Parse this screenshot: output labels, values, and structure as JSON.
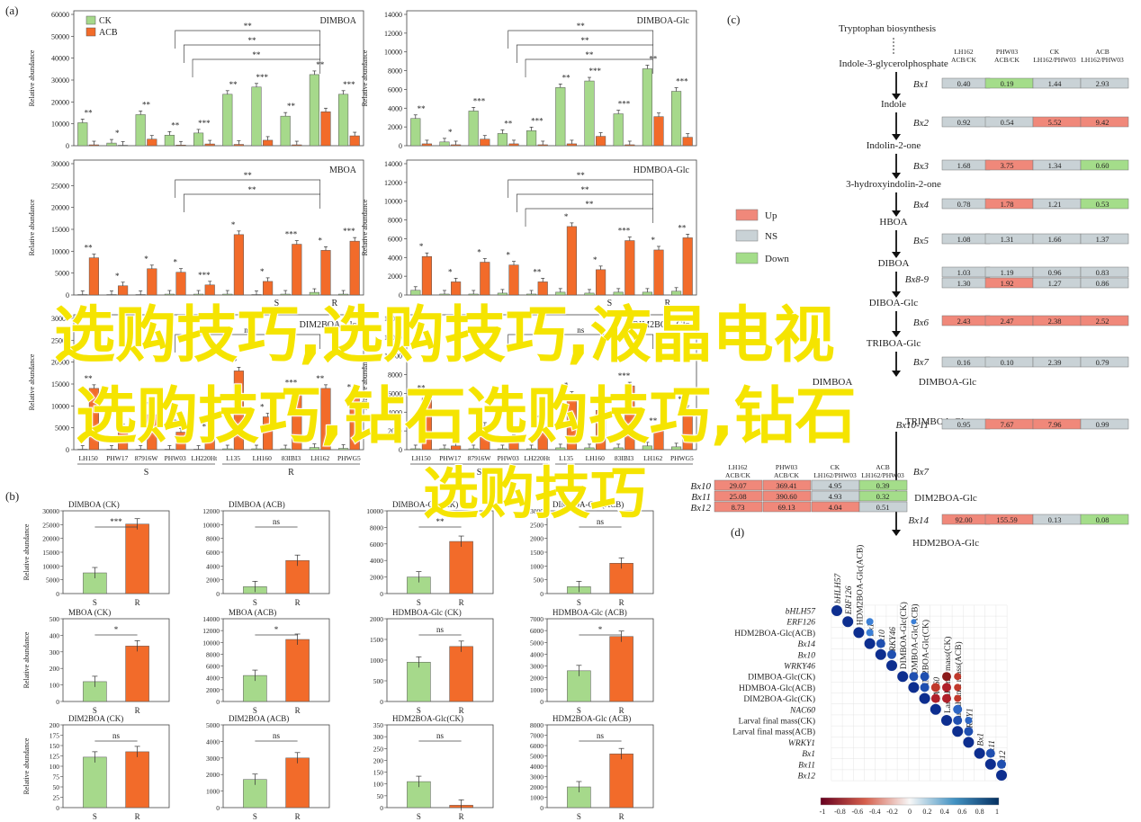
{
  "labels": {
    "a": "(a)",
    "b": "(b)",
    "c": "(c)",
    "d": "(d)"
  },
  "colors": {
    "ck": "#a6d98b",
    "acb": "#f26b2a",
    "up": "#f0887a",
    "ns": "#c9d2d6",
    "down": "#a4dd8a"
  },
  "legend_a": {
    "ck": "CK",
    "acb": "ACB"
  },
  "cultivars_S": [
    "LH150",
    "PHW17",
    "87916W",
    "PHW03",
    "LH220Ht"
  ],
  "cultivars_R": [
    "L135",
    "LH160",
    "83IBI3",
    "LH162",
    "PHWG5"
  ],
  "group_labels": {
    "s": "S",
    "r": "R"
  },
  "ylabel": "Relative abundance",
  "chart_data": [
    {
      "type": "bar",
      "title": "DIMBOA",
      "ylim": [
        0,
        60000
      ],
      "yticks": [
        0,
        10000,
        20000,
        30000,
        40000,
        50000,
        60000
      ],
      "series": [
        {
          "name": "CK",
          "values": [
            10500,
            1200,
            14200,
            4800,
            5800,
            23500,
            26800,
            13500,
            32500,
            23500
          ]
        },
        {
          "name": "ACB",
          "values": [
            400,
            200,
            3000,
            300,
            800,
            600,
            2500,
            400,
            15500,
            4500
          ]
        }
      ],
      "sig": [
        "**",
        "*",
        "**",
        "**",
        "***",
        "**",
        "***",
        "**",
        "**",
        "***"
      ],
      "brackets": [
        "**",
        "**",
        "**"
      ]
    },
    {
      "type": "bar",
      "title": "DIMBOA-Glc",
      "ylim": [
        0,
        14000
      ],
      "yticks": [
        0,
        2000,
        4000,
        6000,
        8000,
        10000,
        12000,
        14000
      ],
      "series": [
        {
          "name": "CK",
          "values": [
            2900,
            400,
            3700,
            1300,
            1600,
            6200,
            6900,
            3400,
            8200,
            5800
          ]
        },
        {
          "name": "ACB",
          "values": [
            200,
            100,
            700,
            200,
            100,
            200,
            1000,
            100,
            3100,
            900
          ]
        }
      ],
      "sig": [
        "**",
        "*",
        "***",
        "**",
        "***",
        "**",
        "***",
        "***",
        "**",
        "***"
      ],
      "brackets": [
        "**",
        "**",
        "**"
      ]
    },
    {
      "type": "bar",
      "title": "MBOA",
      "ylim": [
        0,
        30000
      ],
      "yticks": [
        0,
        5000,
        10000,
        15000,
        20000,
        25000,
        30000
      ],
      "series": [
        {
          "name": "CK",
          "values": [
            100,
            100,
            100,
            200,
            200,
            200,
            100,
            200,
            600,
            200
          ]
        },
        {
          "name": "ACB",
          "values": [
            8500,
            2100,
            6000,
            5200,
            2300,
            13800,
            3100,
            11600,
            10200,
            12300
          ]
        }
      ],
      "sig": [
        "**",
        "*",
        "*",
        "*",
        "***",
        "*",
        "*",
        "***",
        "*",
        "***"
      ],
      "brackets": [
        "**",
        "**"
      ]
    },
    {
      "type": "bar",
      "title": "HDMBOA-Glc",
      "ylim": [
        0,
        14000
      ],
      "yticks": [
        0,
        2000,
        4000,
        6000,
        8000,
        10000,
        12000,
        14000
      ],
      "series": [
        {
          "name": "CK",
          "values": [
            500,
            100,
            100,
            200,
            100,
            300,
            200,
            300,
            300,
            400
          ]
        },
        {
          "name": "ACB",
          "values": [
            4100,
            1400,
            3500,
            3200,
            1400,
            7300,
            2700,
            5800,
            4800,
            6100
          ]
        }
      ],
      "sig": [
        "*",
        "*",
        "*",
        "*",
        "**",
        "*",
        "*",
        "***",
        "*",
        "**"
      ],
      "brackets": [
        "**",
        "**",
        "**"
      ]
    },
    {
      "type": "bar",
      "title": "DIM2BOA-Glc",
      "ylim": [
        0,
        30000
      ],
      "yticks": [
        0,
        5000,
        10000,
        15000,
        20000,
        25000,
        30000
      ],
      "series": [
        {
          "name": "CK",
          "values": [
            100,
            100,
            100,
            100,
            100,
            200,
            200,
            200,
            500,
            300
          ]
        },
        {
          "name": "ACB",
          "values": [
            14000,
            5000,
            8000,
            4000,
            3000,
            18000,
            7500,
            13000,
            14000,
            12000
          ]
        }
      ],
      "sig": [
        "**",
        "*",
        "*",
        "*",
        "*",
        "**",
        "*",
        "***",
        "**",
        "*"
      ],
      "brackets": [
        "ns"
      ]
    },
    {
      "type": "bar",
      "title": "DIM2BOA-Glc",
      "ylim": [
        0,
        14000
      ],
      "yticks": [
        0,
        2000,
        4000,
        6000,
        8000,
        10000,
        12000,
        14000
      ],
      "series": [
        {
          "name": "CK",
          "values": [
            100,
            100,
            100,
            100,
            100,
            200,
            200,
            200,
            400,
            300
          ]
        },
        {
          "name": "ACB",
          "values": [
            5500,
            400,
            2500,
            1200,
            2300,
            5800,
            4200,
            6800,
            2000,
            4300
          ]
        }
      ],
      "sig": [
        "**",
        "***",
        "*",
        "*",
        "*",
        "*",
        "**",
        "***",
        "**",
        "**"
      ],
      "brackets": [
        "ns"
      ]
    },
    {
      "type": "bar",
      "title": "DIMBOA (CK)",
      "ylim": [
        0,
        30000
      ],
      "yticks": [
        0,
        5000,
        10000,
        15000,
        20000,
        25000,
        30000
      ],
      "categories": [
        "S",
        "R"
      ],
      "values": [
        7500,
        25200
      ],
      "sig": "***"
    },
    {
      "type": "bar",
      "title": "DIMBOA (ACB)",
      "ylim": [
        0,
        12000
      ],
      "yticks": [
        0,
        2000,
        4000,
        6000,
        8000,
        10000,
        12000
      ],
      "categories": [
        "S",
        "R"
      ],
      "values": [
        1000,
        4800
      ],
      "sig": "ns"
    },
    {
      "type": "bar",
      "title": "DIMBOA-Glc (CK)",
      "ylim": [
        0,
        10000
      ],
      "yticks": [
        0,
        2000,
        4000,
        6000,
        8000,
        10000
      ],
      "categories": [
        "S",
        "R"
      ],
      "values": [
        2000,
        6300
      ],
      "sig": "**"
    },
    {
      "type": "bar",
      "title": "DIMBOA-Glc (ACB)",
      "ylim": [
        0,
        3000
      ],
      "yticks": [
        0,
        500,
        1000,
        1500,
        2000,
        2500,
        3000
      ],
      "categories": [
        "S",
        "R"
      ],
      "values": [
        250,
        1100
      ],
      "sig": "ns"
    },
    {
      "type": "bar",
      "title": "MBOA (CK)",
      "ylim": [
        0,
        500
      ],
      "yticks": [
        0,
        100,
        200,
        300,
        400,
        500
      ],
      "categories": [
        "S",
        "R"
      ],
      "values": [
        120,
        335
      ],
      "sig": "*"
    },
    {
      "type": "bar",
      "title": "MBOA (ACB)",
      "ylim": [
        0,
        14000
      ],
      "yticks": [
        0,
        2000,
        4000,
        6000,
        8000,
        10000,
        12000,
        14000
      ],
      "categories": [
        "S",
        "R"
      ],
      "values": [
        4400,
        10500
      ],
      "sig": "*"
    },
    {
      "type": "bar",
      "title": "HDMBOA-Glc (CK)",
      "ylim": [
        0,
        2000
      ],
      "yticks": [
        0,
        500,
        1000,
        1500,
        2000
      ],
      "categories": [
        "S",
        "R"
      ],
      "values": [
        950,
        1330
      ],
      "sig": "ns"
    },
    {
      "type": "bar",
      "title": "HDMBOA-Glc (ACB)",
      "ylim": [
        0,
        7000
      ],
      "yticks": [
        0,
        1000,
        2000,
        3000,
        4000,
        5000,
        6000,
        7000
      ],
      "categories": [
        "S",
        "R"
      ],
      "values": [
        2600,
        5500
      ],
      "sig": "*"
    },
    {
      "type": "bar",
      "title": "DIM2BOA (CK)",
      "ylim": [
        0,
        200
      ],
      "yticks": [
        0,
        25,
        50,
        75,
        100,
        125,
        150,
        175,
        200
      ],
      "categories": [
        "S",
        "R"
      ],
      "values": [
        122,
        135
      ],
      "sig": "ns"
    },
    {
      "type": "bar",
      "title": "DIM2BOA (ACB)",
      "ylim": [
        0,
        5000
      ],
      "yticks": [
        0,
        1000,
        2000,
        3000,
        4000,
        5000
      ],
      "categories": [
        "S",
        "R"
      ],
      "values": [
        1700,
        3000
      ],
      "sig": "ns"
    },
    {
      "type": "bar",
      "title": "HDM2BOA-Glc(CK)",
      "ylim": [
        0,
        350
      ],
      "yticks": [
        0,
        50,
        100,
        150,
        200,
        250,
        300,
        350
      ],
      "categories": [
        "S",
        "R"
      ],
      "values": [
        110,
        10
      ],
      "sig": "ns"
    },
    {
      "type": "bar",
      "title": "HDM2BOA-Glc (ACB)",
      "ylim": [
        0,
        8000
      ],
      "yticks": [
        0,
        1000,
        2000,
        3000,
        4000,
        5000,
        6000,
        7000,
        8000
      ],
      "categories": [
        "S",
        "R"
      ],
      "values": [
        2000,
        5200
      ],
      "sig": "ns"
    }
  ],
  "pathway": {
    "start": "Tryptophan biosynthesis",
    "metabolites": [
      "Indole-3-glycerolphosphate",
      "Indole",
      "Indolin-2-one",
      "3-hydroxyindolin-2-one",
      "HBOA",
      "DIBOA",
      "DIBOA-Glc",
      "TRIBOA-Glc",
      "DIMBOA",
      "DIMBOA-Glc",
      "TRIMBOA-Glc",
      "DIM2BOA-Glc",
      "HDM2BOA-Glc"
    ],
    "enzymes": [
      "Bx1",
      "Bx2",
      "Bx3",
      "Bx4",
      "Bx5",
      "Bx8-9",
      "Bx6",
      "Bx7",
      "Bx10-11",
      "Bx7",
      "Bx14"
    ],
    "header": [
      "LH162\nACB/CK",
      "PHW03\nACB/CK",
      "CK\nLH162/PHW03",
      "ACB\nLH162/PHW03"
    ],
    "rows": [
      {
        "gene": "Bx1",
        "values": [
          "0.40",
          "0.19",
          "1.44",
          "2.93"
        ],
        "status": [
          "ns",
          "down",
          "ns",
          "ns"
        ]
      },
      {
        "gene": "Bx2",
        "values": [
          "0.92",
          "0.54",
          "5.52",
          "9.42"
        ],
        "status": [
          "ns",
          "ns",
          "up",
          "up"
        ]
      },
      {
        "gene": "Bx3",
        "values": [
          "1.68",
          "3.75",
          "1.34",
          "0.60"
        ],
        "status": [
          "ns",
          "up",
          "ns",
          "down"
        ]
      },
      {
        "gene": "Bx4",
        "values": [
          "0.78",
          "1.78",
          "1.21",
          "0.53"
        ],
        "status": [
          "ns",
          "up",
          "ns",
          "down"
        ]
      },
      {
        "gene": "Bx5",
        "values": [
          "1.08",
          "1.31",
          "1.66",
          "1.37"
        ],
        "status": [
          "ns",
          "ns",
          "ns",
          "ns"
        ]
      },
      {
        "gene": "Bx8",
        "values": [
          "1.03",
          "1.19",
          "0.96",
          "0.83"
        ],
        "status": [
          "ns",
          "ns",
          "ns",
          "ns"
        ]
      },
      {
        "gene": "Bx9",
        "values": [
          "1.30",
          "1.92",
          "1.27",
          "0.86"
        ],
        "status": [
          "ns",
          "up",
          "ns",
          "ns"
        ]
      },
      {
        "gene": "Bx6",
        "values": [
          "2.43",
          "2.47",
          "2.38",
          "2.52"
        ],
        "status": [
          "up",
          "up",
          "up",
          "up"
        ]
      },
      {
        "gene": "Bx7",
        "values": [
          "0.16",
          "0.10",
          "2.39",
          "0.79"
        ],
        "status": [
          "ns",
          "ns",
          "ns",
          "ns"
        ]
      },
      {
        "gene": "Bx10-11",
        "values": [
          "0.95",
          "7.67",
          "7.96",
          "0.99"
        ],
        "status": [
          "ns",
          "up",
          "up",
          "ns"
        ]
      },
      {
        "gene": "Bx14",
        "values": [
          "92.00",
          "155.59",
          "0.13",
          "0.08"
        ],
        "status": [
          "up",
          "up",
          "ns",
          "down"
        ]
      }
    ],
    "left_table": {
      "rows": [
        {
          "gene": "Bx10",
          "values": [
            "29.07",
            "369.41",
            "4.95",
            "0.39"
          ],
          "status": [
            "up",
            "up",
            "ns",
            "down"
          ]
        },
        {
          "gene": "Bx11",
          "values": [
            "25.08",
            "390.60",
            "4.93",
            "0.32"
          ],
          "status": [
            "up",
            "up",
            "ns",
            "down"
          ]
        },
        {
          "gene": "Bx12",
          "values": [
            "8.73",
            "69.13",
            "4.04",
            "0.51"
          ],
          "status": [
            "up",
            "up",
            "up",
            "ns"
          ]
        }
      ]
    },
    "legend": {
      "up": "Up",
      "ns": "NS",
      "down": "Down"
    }
  },
  "corr": {
    "variables": [
      "bHLH57",
      "ERF126",
      "HDM2BOA-Glc(ACB)",
      "Bx14",
      "Bx10",
      "WRKY46",
      "DIMBOA-Glc(CK)",
      "HDMBOA-Glc(ACB)",
      "DIM2BOA-Glc(CK)",
      "NAC60",
      "Larval final mass(CK)",
      "Larval final mass(ACB)",
      "WRKY1",
      "Bx1",
      "Bx11",
      "Bx12"
    ],
    "italic": [
      true,
      true,
      false,
      true,
      true,
      true,
      false,
      false,
      false,
      true,
      false,
      false,
      true,
      true,
      true,
      true
    ],
    "scale_ticks": [
      "-1",
      "-0.8",
      "-0.6",
      "-0.4",
      "-0.2",
      "0",
      "0.2",
      "0.4",
      "0.6",
      "0.8",
      "1"
    ]
  },
  "overlay_text": [
    "选购技巧,选购技巧,液晶电视",
    "选购技巧,钻石选购技巧,钻石",
    "选购技巧"
  ]
}
